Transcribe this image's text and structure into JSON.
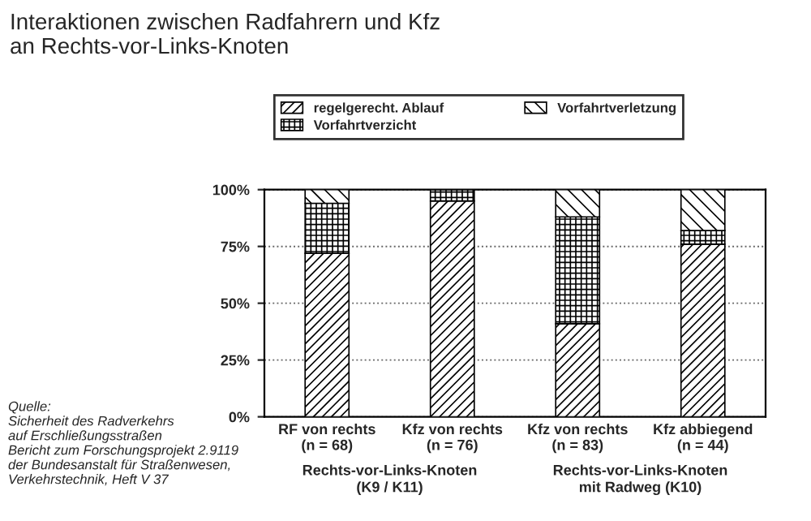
{
  "chart_data": {
    "type": "bar",
    "title": "Interaktionen zwischen Radfahrern und Kfz\nan Rechts-vor-Links-Knoten",
    "categories": [
      "RF von rechts\n(n = 68)",
      "Kfz von rechts\n(n = 76)",
      "Kfz von rechts\n(n = 83)",
      "Kfz abbiegend\n(n = 44)"
    ],
    "stacked": true,
    "series": [
      {
        "name": "regelgerecht. Ablauf",
        "color": "#000000",
        "values": [
          72,
          95,
          41,
          76
        ]
      },
      {
        "name": "Vorfahrtverzicht",
        "color": "#000000",
        "values": [
          22,
          5,
          47,
          6
        ]
      },
      {
        "name": "Vorfahrtverletzung",
        "color": "#000000",
        "values": [
          6,
          0,
          12,
          18
        ]
      }
    ],
    "ylim": [
      0,
      100
    ],
    "yticks": [
      {
        "value": 0,
        "label": "0%"
      },
      {
        "value": 25,
        "label": "25%"
      },
      {
        "value": 50,
        "label": "50%"
      },
      {
        "value": 75,
        "label": "75%"
      },
      {
        "value": 100,
        "label": "100%"
      }
    ],
    "grid": "y",
    "legend": "top",
    "annotations": [
      "Rechts-vor-Links-Knoten\n(K9 / K11)",
      "Rechts-vor-Links-Knoten\nmit Radweg (K10)",
      "Quelle:\nSicherheit des Radverkehrs\nauf Erschließungsstraßen\nBericht zum Forschungsprojekt 2.9119\nder Bundesanstalt für Straßenwesen,\nVerkehrstechnik, Heft V 37"
    ]
  }
}
